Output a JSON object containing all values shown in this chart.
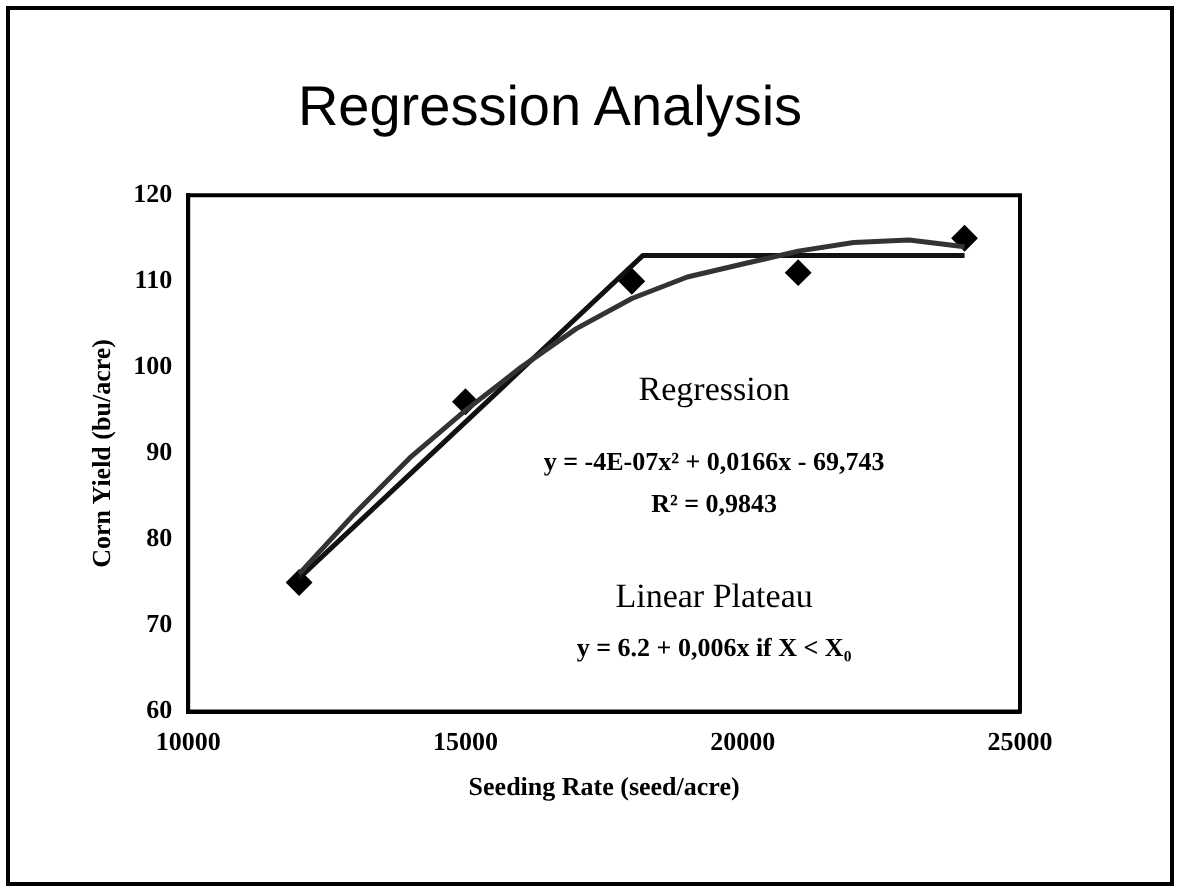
{
  "chart_data": {
    "type": "scatter",
    "title": "Regression Analysis",
    "xlabel": "Seeding Rate (seed/acre)",
    "ylabel": "Corn Yield (bu/acre)",
    "xlim": [
      10000,
      25000
    ],
    "xticks": [
      10000,
      15000,
      20000,
      25000
    ],
    "ylim": [
      60,
      120
    ],
    "yticks": [
      60,
      70,
      80,
      90,
      100,
      110,
      120
    ],
    "grid": false,
    "legend": false,
    "series": [
      {
        "type": "line",
        "color": "#333333",
        "x": [
          12000,
          13000,
          14000,
          15000,
          16000,
          17000,
          18000,
          19000,
          20000,
          21000,
          22000,
          23000,
          24000
        ],
        "values": [
          76,
          83,
          89.5,
          95,
          100,
          104.5,
          108,
          110.5,
          112,
          113.5,
          114.5,
          114.8,
          114
        ],
        "marker": "none"
      },
      {
        "type": "line",
        "color": "#111111",
        "x": [
          12000,
          18200,
          24000
        ],
        "values": [
          75.5,
          113,
          113
        ],
        "marker": "none"
      },
      {
        "color": "#000000",
        "x": [
          12000,
          15000,
          18000,
          21000,
          24000
        ],
        "values": [
          75,
          96,
          110,
          111,
          115
        ],
        "marker": "diamond"
      }
    ],
    "annotations": [
      "Regression",
      "y = -4E-07x² + 0,0166x - 69,743",
      "R² = 0,9843",
      "Linear Plateau",
      "y = 6.2 + 0,006x if X < X₀"
    ]
  }
}
